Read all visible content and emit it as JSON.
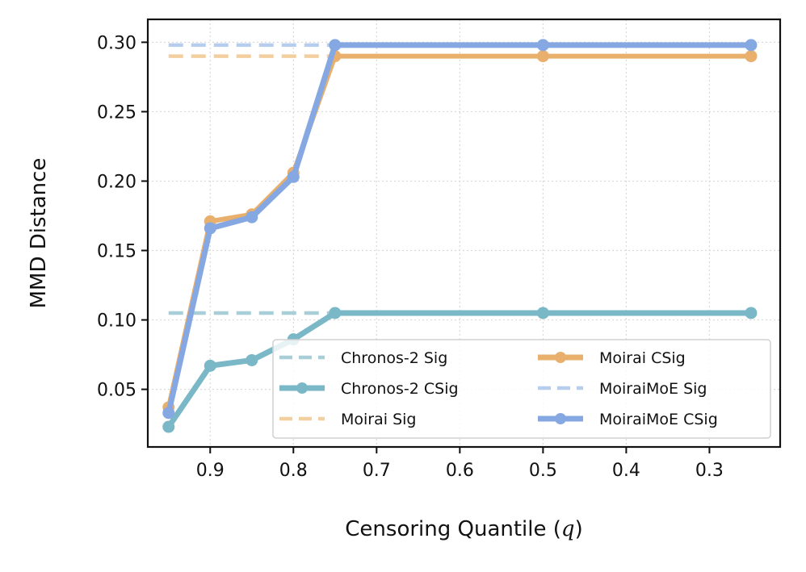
{
  "chart_data": {
    "type": "line",
    "xlabel": "Censoring Quantile (q)",
    "ylabel": "MMD Distance",
    "xlim": [
      0.975,
      0.215
    ],
    "ylim": [
      0.0085,
      0.3165
    ],
    "x_inverted": true,
    "grid": true,
    "legend_position": "lower-right",
    "legend_columns": 2,
    "xticks": [
      0.9,
      0.8,
      0.7,
      0.6,
      0.5,
      0.4,
      0.3
    ],
    "yticks": [
      0.05,
      0.1,
      0.15,
      0.2,
      0.25,
      0.3
    ],
    "xtick_labels": [
      "0.9",
      "0.8",
      "0.7",
      "0.6",
      "0.5",
      "0.4",
      "0.3"
    ],
    "ytick_labels": [
      "0.05",
      "0.10",
      "0.15",
      "0.20",
      "0.25",
      "0.30"
    ],
    "x": [
      0.95,
      0.9,
      0.85,
      0.8,
      0.75,
      0.5,
      0.25
    ],
    "series": [
      {
        "name": "Chronos-2 Sig",
        "style": "dashed",
        "color": "#a8cfd8",
        "x": [
          0.95,
          0.75
        ],
        "values": [
          0.105,
          0.105
        ]
      },
      {
        "name": "Chronos-2 CSig",
        "style": "solid-marker",
        "color": "#7ab8c8",
        "values": [
          0.023,
          0.067,
          0.071,
          0.086,
          0.105,
          0.105,
          0.105
        ]
      },
      {
        "name": "Moirai Sig",
        "style": "dashed",
        "color": "#f3cfa0",
        "x": [
          0.95,
          0.75
        ],
        "values": [
          0.29,
          0.29
        ]
      },
      {
        "name": "Moirai CSig",
        "style": "solid-marker",
        "color": "#e8b06c",
        "values": [
          0.037,
          0.171,
          0.176,
          0.206,
          0.29,
          0.29,
          0.29
        ]
      },
      {
        "name": "MoiraiMoE Sig",
        "style": "dashed",
        "color": "#b7cdee",
        "x": [
          0.95,
          0.75
        ],
        "values": [
          0.298,
          0.298
        ]
      },
      {
        "name": "MoiraiMoE CSig",
        "style": "solid-marker",
        "color": "#86a8e2",
        "values": [
          0.033,
          0.166,
          0.174,
          0.203,
          0.298,
          0.298,
          0.298
        ]
      }
    ]
  }
}
